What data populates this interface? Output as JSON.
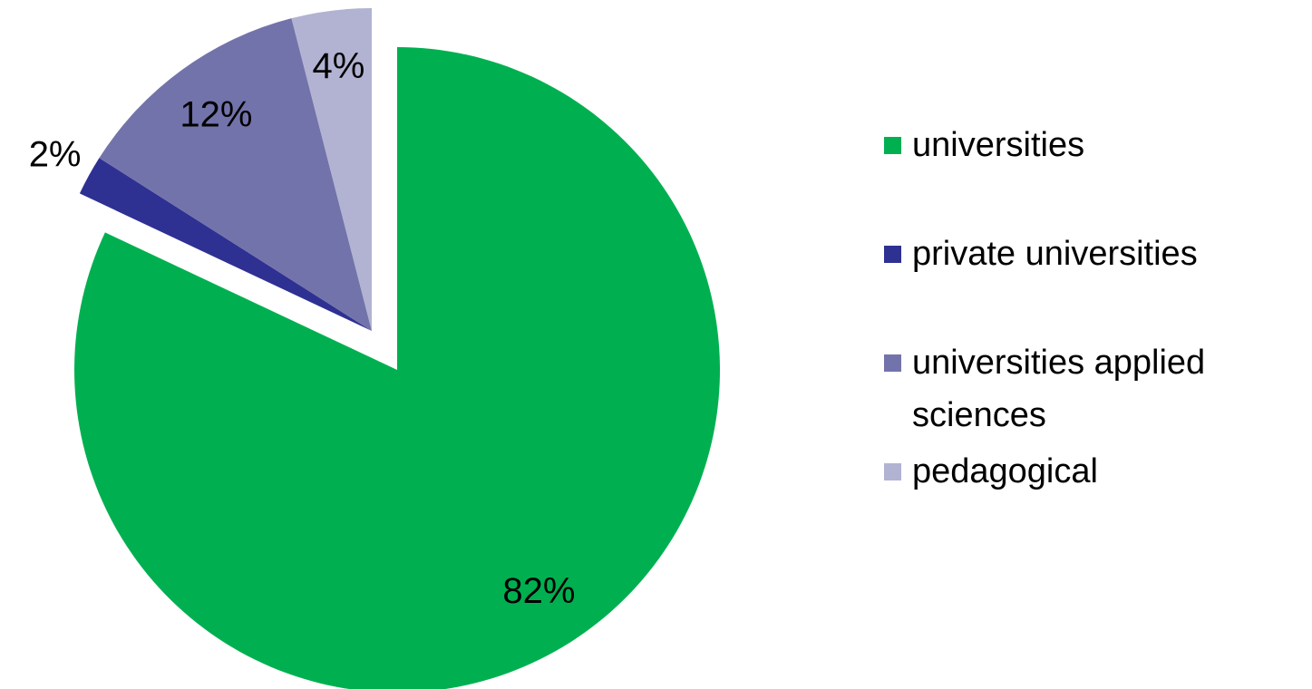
{
  "chart_data": {
    "type": "pie",
    "categories": [
      "universities",
      "private universities",
      "universities applied sciences",
      "pedagogical"
    ],
    "values": [
      82,
      2,
      12,
      4
    ],
    "value_labels": [
      "82%",
      "2%",
      "12%",
      "4%"
    ],
    "colors": [
      "#00b050",
      "#2e3192",
      "#7373ab",
      "#b2b2d2"
    ],
    "legend": "right"
  }
}
